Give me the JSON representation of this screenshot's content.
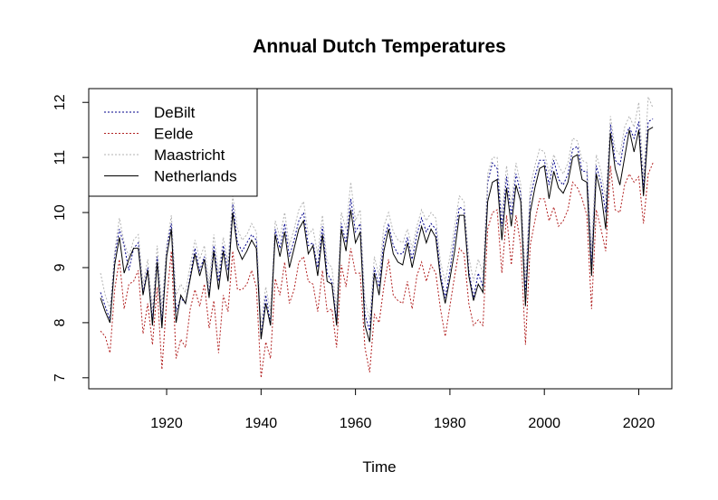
{
  "chart_data": {
    "type": "line",
    "title": "Annual Dutch Temperatures",
    "xlabel": "Time",
    "ylabel": "",
    "xlim": [
      1903.5,
      2027
    ],
    "ylim": [
      6.8,
      12.25
    ],
    "x_ticks": [
      1920,
      1940,
      1960,
      1980,
      2000,
      2020
    ],
    "y_ticks": [
      7,
      8,
      9,
      10,
      11,
      12
    ],
    "grid": false,
    "legend_position": "top-left",
    "x_start": 1906,
    "x": [
      1906,
      1907,
      1908,
      1909,
      1910,
      1911,
      1912,
      1913,
      1914,
      1915,
      1916,
      1917,
      1918,
      1919,
      1920,
      1921,
      1922,
      1923,
      1924,
      1925,
      1926,
      1927,
      1928,
      1929,
      1930,
      1931,
      1932,
      1933,
      1934,
      1935,
      1936,
      1937,
      1938,
      1939,
      1940,
      1941,
      1942,
      1943,
      1944,
      1945,
      1946,
      1947,
      1948,
      1949,
      1950,
      1951,
      1952,
      1953,
      1954,
      1955,
      1956,
      1957,
      1958,
      1959,
      1960,
      1961,
      1962,
      1963,
      1964,
      1965,
      1966,
      1967,
      1968,
      1969,
      1970,
      1971,
      1972,
      1973,
      1974,
      1975,
      1976,
      1977,
      1978,
      1979,
      1980,
      1981,
      1982,
      1983,
      1984,
      1985,
      1986,
      1987,
      1988,
      1989,
      1990,
      1991,
      1992,
      1993,
      1994,
      1995,
      1996,
      1997,
      1998,
      1999,
      2000,
      2001,
      2002,
      2003,
      2004,
      2005,
      2006,
      2007,
      2008,
      2009,
      2010,
      2011,
      2012,
      2013,
      2014,
      2015,
      2016,
      2017,
      2018,
      2019,
      2020,
      2021,
      2022,
      2023
    ],
    "series": [
      {
        "name": "DeBilt",
        "color": "#00008b",
        "dash": "dotted",
        "values": [
          8.55,
          8.3,
          8.05,
          9.2,
          9.7,
          9.4,
          8.95,
          9.35,
          9.45,
          8.55,
          9.0,
          8.05,
          9.2,
          8.0,
          9.35,
          9.8,
          8.2,
          8.45,
          8.35,
          8.85,
          9.35,
          8.95,
          9.2,
          8.5,
          9.4,
          8.75,
          9.4,
          8.95,
          10.15,
          9.45,
          9.3,
          9.45,
          9.6,
          9.5,
          7.75,
          8.5,
          8.0,
          9.7,
          9.35,
          9.8,
          9.2,
          9.5,
          9.85,
          10.0,
          9.4,
          9.45,
          9.0,
          9.75,
          8.9,
          8.75,
          8.05,
          9.8,
          9.45,
          10.25,
          9.65,
          9.8,
          8.15,
          7.85,
          9.0,
          8.65,
          9.5,
          9.8,
          9.4,
          9.25,
          9.25,
          9.55,
          9.15,
          9.6,
          9.9,
          9.65,
          9.8,
          9.7,
          8.9,
          8.45,
          8.95,
          9.55,
          10.1,
          10.05,
          8.95,
          8.45,
          8.9,
          8.65,
          10.55,
          10.9,
          10.8,
          9.75,
          10.65,
          9.95,
          10.7,
          10.35,
          8.55,
          10.25,
          10.65,
          10.95,
          10.95,
          10.5,
          10.95,
          10.6,
          10.5,
          10.7,
          11.15,
          11.2,
          10.75,
          10.75,
          9.05,
          10.85,
          10.55,
          10.0,
          11.6,
          10.95,
          10.85,
          11.35,
          11.55,
          11.35,
          11.65,
          10.45,
          11.65,
          11.7
        ]
      },
      {
        "name": "Eelde",
        "color": "#b22222",
        "dash": "dotted",
        "values": [
          7.85,
          7.75,
          7.45,
          8.6,
          9.15,
          8.25,
          8.7,
          8.75,
          8.95,
          7.8,
          8.35,
          7.6,
          8.65,
          7.15,
          8.4,
          9.3,
          7.35,
          7.7,
          7.55,
          8.25,
          8.6,
          8.3,
          8.7,
          7.9,
          8.4,
          7.45,
          8.5,
          8.2,
          9.3,
          8.6,
          8.6,
          8.7,
          8.95,
          8.65,
          7.0,
          7.65,
          7.35,
          8.8,
          8.5,
          9.1,
          8.35,
          8.6,
          9.1,
          9.2,
          8.75,
          8.7,
          8.2,
          8.95,
          8.2,
          8.25,
          7.55,
          9.05,
          8.65,
          9.35,
          8.9,
          8.9,
          7.55,
          7.1,
          8.15,
          8.0,
          8.65,
          9.15,
          8.5,
          8.4,
          8.35,
          8.75,
          8.25,
          8.85,
          9.1,
          8.75,
          9.05,
          8.9,
          8.25,
          7.75,
          8.3,
          8.85,
          9.35,
          9.25,
          8.35,
          7.95,
          8.05,
          7.95,
          9.7,
          10.0,
          10.05,
          8.9,
          9.95,
          9.05,
          9.95,
          9.4,
          7.6,
          9.4,
          9.85,
          10.25,
          10.25,
          9.85,
          10.1,
          9.75,
          9.85,
          10.05,
          10.55,
          10.45,
          10.25,
          9.95,
          8.25,
          10.05,
          9.7,
          9.3,
          10.85,
          10.05,
          10.0,
          10.5,
          10.7,
          10.55,
          10.65,
          9.8,
          10.7,
          10.9
        ]
      },
      {
        "name": "Maastricht",
        "color": "#b3b3b3",
        "dash": "dotted",
        "values": [
          8.9,
          8.5,
          8.25,
          9.3,
          9.9,
          9.45,
          9.2,
          9.5,
          9.6,
          8.7,
          9.15,
          8.25,
          9.4,
          8.3,
          9.4,
          9.95,
          8.5,
          8.7,
          8.55,
          9.05,
          9.5,
          9.15,
          9.4,
          8.7,
          9.6,
          8.9,
          9.55,
          9.1,
          10.3,
          9.7,
          9.5,
          9.6,
          9.8,
          9.65,
          8.0,
          8.65,
          8.2,
          9.85,
          9.55,
          10.0,
          9.4,
          9.7,
          10.05,
          10.2,
          9.6,
          9.7,
          9.25,
          9.95,
          9.1,
          9.0,
          8.25,
          10.0,
          9.7,
          10.55,
          9.85,
          10.05,
          8.4,
          8.05,
          9.2,
          8.85,
          9.75,
          10.0,
          9.65,
          9.5,
          9.45,
          9.7,
          9.35,
          9.75,
          10.05,
          9.85,
          10.0,
          9.9,
          9.1,
          8.75,
          9.2,
          9.75,
          10.3,
          10.2,
          9.2,
          8.75,
          9.15,
          8.9,
          10.7,
          11.0,
          11.0,
          9.95,
          10.85,
          10.15,
          10.9,
          10.5,
          8.8,
          10.45,
          10.85,
          11.15,
          11.1,
          10.7,
          11.05,
          10.85,
          10.7,
          10.9,
          11.35,
          11.3,
          10.95,
          10.9,
          9.35,
          11.05,
          10.75,
          10.25,
          11.75,
          11.15,
          11.05,
          11.55,
          11.75,
          11.55,
          12.0,
          10.65,
          12.1,
          11.9
        ]
      },
      {
        "name": "Netherlands",
        "color": "#000000",
        "dash": "solid",
        "values": [
          8.45,
          8.2,
          8.0,
          9.05,
          9.55,
          8.9,
          9.15,
          9.35,
          9.35,
          8.5,
          8.95,
          7.95,
          9.1,
          7.9,
          9.2,
          9.7,
          8.0,
          8.5,
          8.35,
          8.8,
          9.25,
          8.85,
          9.15,
          8.45,
          9.3,
          8.6,
          9.3,
          8.75,
          10.0,
          9.35,
          9.15,
          9.3,
          9.5,
          9.35,
          7.7,
          8.35,
          7.95,
          9.6,
          9.2,
          9.65,
          9.0,
          9.35,
          9.7,
          9.85,
          9.25,
          9.4,
          8.85,
          9.6,
          8.75,
          8.7,
          7.95,
          9.7,
          9.3,
          10.05,
          9.45,
          9.65,
          7.95,
          7.65,
          8.9,
          8.5,
          9.3,
          9.7,
          9.25,
          9.1,
          9.05,
          9.45,
          9.0,
          9.4,
          9.75,
          9.45,
          9.7,
          9.55,
          8.8,
          8.35,
          8.8,
          9.3,
          9.95,
          9.95,
          8.85,
          8.4,
          8.7,
          8.55,
          10.2,
          10.55,
          10.6,
          9.5,
          10.45,
          9.75,
          10.5,
          10.2,
          8.3,
          10.0,
          10.45,
          10.8,
          10.85,
          10.25,
          10.75,
          10.45,
          10.35,
          10.55,
          11.0,
          11.05,
          10.6,
          10.55,
          8.85,
          10.7,
          10.35,
          9.7,
          11.45,
          10.8,
          10.5,
          11.0,
          11.5,
          11.1,
          11.5,
          10.3,
          11.5,
          11.55
        ]
      }
    ]
  }
}
